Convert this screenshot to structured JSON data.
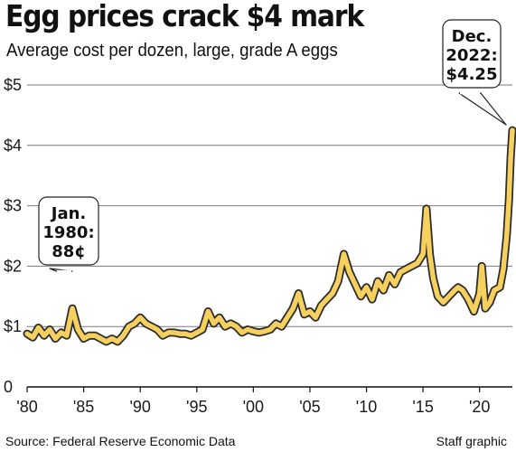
{
  "chart_data": {
    "type": "line",
    "title": "Egg prices crack $4 mark",
    "subtitle": "Average cost per dozen, large, grade A eggs",
    "ylim": [
      0,
      5
    ],
    "y_ticks": [
      0,
      1,
      2,
      3,
      4,
      5
    ],
    "y_tick_labels": [
      "0",
      "$1",
      "$2",
      "$3",
      "$4",
      "$5"
    ],
    "xlim": [
      1980,
      2022.9
    ],
    "x_ticks": [
      1980,
      1985,
      1990,
      1995,
      2000,
      2005,
      2010,
      2015,
      2020
    ],
    "x_tick_labels": [
      "'80",
      "'85",
      "'90",
      "'95",
      "'00",
      "'05",
      "'10",
      "'15",
      "'20"
    ],
    "grid": "horizontal",
    "line_color": "#f5d05e",
    "series": [
      {
        "x": [
          1980.0,
          1980.5,
          1981.0,
          1981.5,
          1982.0,
          1982.5,
          1983.0,
          1983.5,
          1984.0,
          1984.5,
          1985.0,
          1985.5,
          1986.0,
          1986.5,
          1987.0,
          1987.5,
          1988.0,
          1988.5,
          1989.0,
          1989.5,
          1990.0,
          1990.5,
          1991.0,
          1991.5,
          1992.0,
          1992.5,
          1993.0,
          1993.5,
          1994.0,
          1994.5,
          1995.0,
          1995.5,
          1996.0,
          1996.5,
          1997.0,
          1997.5,
          1998.0,
          1998.5,
          1999.0,
          1999.5,
          2000.0,
          2000.5,
          2001.0,
          2001.5,
          2002.0,
          2002.5,
          2003.0,
          2003.5,
          2004.0,
          2004.5,
          2005.0,
          2005.5,
          2006.0,
          2006.5,
          2007.0,
          2007.5,
          2008.0,
          2008.5,
          2009.0,
          2009.5,
          2010.0,
          2010.5,
          2011.0,
          2011.5,
          2012.0,
          2012.5,
          2013.0,
          2013.5,
          2014.0,
          2014.5,
          2015.0,
          2015.3,
          2015.6,
          2015.9,
          2016.3,
          2016.8,
          2017.3,
          2017.8,
          2018.1,
          2018.5,
          2019.0,
          2019.5,
          2020.0,
          2020.2,
          2020.5,
          2020.9,
          2021.3,
          2021.8,
          2022.1,
          2022.4,
          2022.6,
          2022.75,
          2022.9
        ],
        "y": [
          0.88,
          0.82,
          0.98,
          0.85,
          0.95,
          0.8,
          0.9,
          0.85,
          1.3,
          0.95,
          0.8,
          0.85,
          0.85,
          0.8,
          0.75,
          0.8,
          0.75,
          0.85,
          1.0,
          1.05,
          1.15,
          1.05,
          1.0,
          0.95,
          0.85,
          0.9,
          0.9,
          0.88,
          0.88,
          0.85,
          0.9,
          0.95,
          1.25,
          1.05,
          1.15,
          1.0,
          1.05,
          1.0,
          0.9,
          0.95,
          0.92,
          0.9,
          0.92,
          0.95,
          1.05,
          1.0,
          1.15,
          1.3,
          1.55,
          1.2,
          1.25,
          1.15,
          1.35,
          1.45,
          1.55,
          1.75,
          2.2,
          1.9,
          1.7,
          1.5,
          1.65,
          1.45,
          1.75,
          1.6,
          1.85,
          1.7,
          1.9,
          1.95,
          2.0,
          2.05,
          2.2,
          2.95,
          2.2,
          1.8,
          1.5,
          1.4,
          1.5,
          1.6,
          1.65,
          1.6,
          1.45,
          1.25,
          1.55,
          2.0,
          1.3,
          1.4,
          1.6,
          1.65,
          1.95,
          2.5,
          3.1,
          3.8,
          4.25
        ]
      }
    ],
    "annotations": [
      {
        "lines": [
          "Jan.",
          "1980:",
          "88¢"
        ],
        "x": 1980,
        "y": 0.88
      },
      {
        "lines": [
          "Dec.",
          "2022:",
          "$4.25"
        ],
        "x": 2022.9,
        "y": 4.25
      }
    ]
  },
  "footer": {
    "source": "Source: Federal Reserve Economic Data",
    "credit": "Staff graphic"
  }
}
